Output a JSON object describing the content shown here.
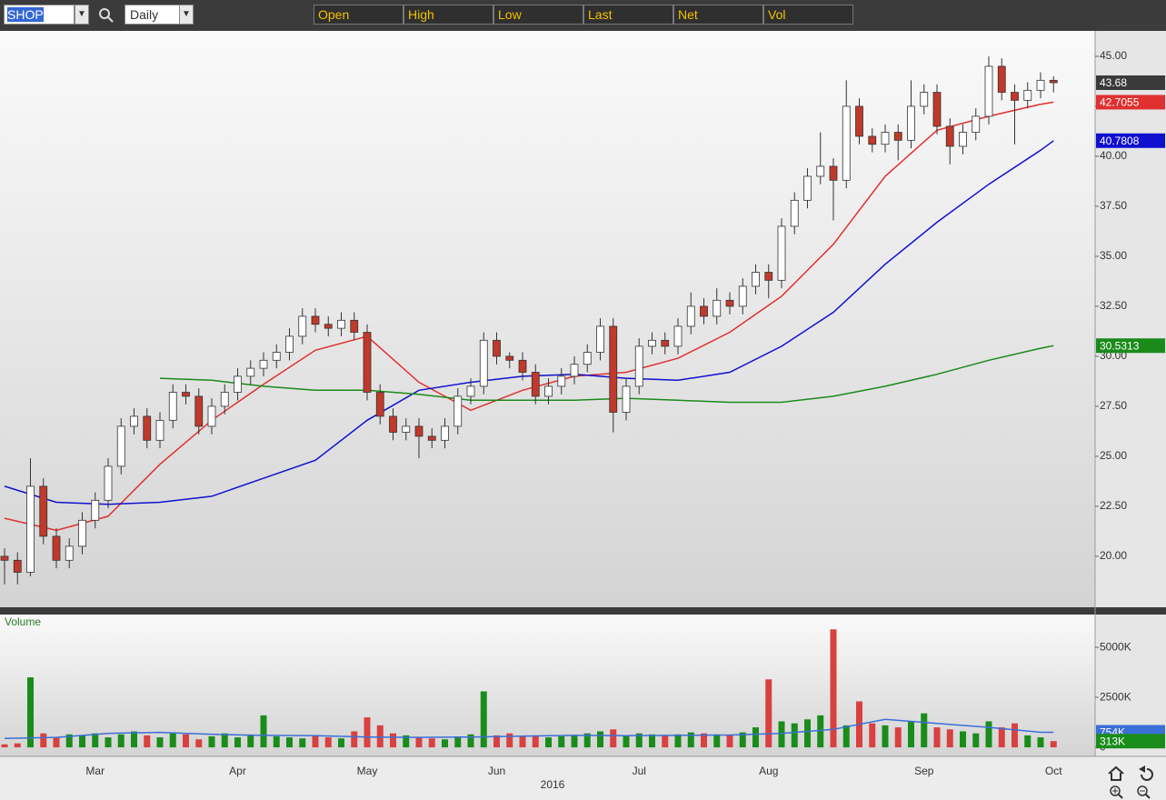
{
  "toolbar": {
    "symbol": "SHOP",
    "interval": "Daily",
    "fields": [
      "Open",
      "High",
      "Low",
      "Last",
      "Net",
      "Vol"
    ]
  },
  "chart_data": [
    {
      "type": "candlestick",
      "up_color": "#ffffff",
      "down_color": "#c0392b",
      "last_color": "#3a3a3a",
      "open": [
        20.0,
        19.8,
        19.2,
        23.5,
        21.0,
        19.8,
        20.5,
        21.8,
        22.8,
        24.5,
        26.5,
        27.0,
        25.8,
        26.8,
        28.2,
        28.0,
        26.5,
        27.5,
        28.2,
        29.0,
        29.4,
        29.8,
        30.2,
        31.0,
        32.0,
        31.6,
        31.4,
        31.8,
        31.2,
        28.2,
        27.0,
        26.2,
        26.5,
        26.0,
        25.8,
        26.5,
        28.0,
        28.5,
        30.8,
        30.0,
        29.8,
        29.2,
        28.0,
        28.5,
        29.0,
        29.6,
        30.2,
        31.5,
        27.2,
        28.5,
        30.5,
        30.8,
        30.5,
        31.5,
        32.5,
        32.0,
        32.8,
        32.5,
        33.5,
        34.2,
        33.8,
        36.5,
        37.8,
        39.0,
        39.5,
        38.8,
        42.5,
        41.0,
        40.6,
        41.2,
        40.8,
        42.5,
        43.2,
        41.5,
        40.5,
        41.2,
        42.0,
        44.5,
        43.2,
        42.8,
        43.3,
        43.8
      ],
      "high": [
        20.4,
        20.2,
        24.9,
        23.9,
        21.4,
        20.9,
        22.2,
        23.2,
        24.9,
        26.9,
        27.4,
        27.4,
        27.2,
        28.6,
        28.6,
        28.4,
        27.9,
        28.6,
        29.4,
        29.8,
        30.2,
        30.6,
        31.4,
        32.4,
        32.4,
        32.0,
        32.2,
        32.2,
        31.6,
        28.6,
        27.4,
        26.9,
        26.9,
        26.4,
        26.9,
        28.4,
        28.9,
        31.2,
        31.2,
        30.2,
        30.2,
        29.6,
        28.9,
        29.4,
        30.0,
        30.6,
        31.9,
        31.9,
        28.9,
        30.9,
        31.2,
        31.2,
        31.9,
        33.2,
        32.9,
        33.4,
        33.2,
        33.9,
        34.6,
        34.6,
        36.9,
        38.2,
        39.4,
        41.2,
        39.9,
        43.8,
        42.9,
        41.4,
        41.6,
        41.6,
        43.8,
        43.6,
        43.6,
        41.9,
        41.6,
        42.4,
        45.0,
        44.9,
        43.6,
        43.7,
        44.2,
        44.0
      ],
      "low": [
        18.6,
        18.6,
        19.0,
        20.6,
        19.4,
        19.4,
        20.1,
        21.4,
        22.4,
        24.1,
        26.1,
        25.4,
        25.4,
        26.4,
        27.6,
        26.1,
        26.1,
        27.1,
        27.8,
        28.6,
        29.0,
        29.4,
        29.8,
        30.6,
        31.2,
        31.0,
        31.0,
        30.8,
        27.8,
        26.6,
        25.8,
        25.8,
        24.9,
        25.4,
        25.4,
        26.1,
        27.6,
        28.1,
        29.6,
        29.4,
        28.8,
        27.6,
        27.6,
        28.1,
        28.6,
        29.2,
        29.8,
        26.2,
        26.8,
        28.1,
        30.1,
        30.1,
        30.1,
        31.1,
        31.6,
        31.6,
        32.1,
        32.1,
        33.1,
        32.9,
        33.4,
        36.1,
        37.4,
        38.6,
        36.8,
        38.4,
        40.6,
        40.2,
        40.2,
        39.8,
        40.4,
        42.1,
        41.1,
        39.6,
        40.1,
        40.8,
        41.6,
        42.8,
        40.6,
        42.4,
        42.9,
        43.2
      ],
      "close": [
        19.8,
        19.2,
        23.5,
        21.0,
        19.8,
        20.5,
        21.8,
        22.8,
        24.5,
        26.5,
        27.0,
        25.8,
        26.8,
        28.2,
        28.0,
        26.5,
        27.5,
        28.2,
        29.0,
        29.4,
        29.8,
        30.2,
        31.0,
        32.0,
        31.6,
        31.4,
        31.8,
        31.2,
        28.2,
        27.0,
        26.2,
        26.5,
        26.0,
        25.8,
        26.5,
        28.0,
        28.5,
        30.8,
        30.0,
        29.8,
        29.2,
        28.0,
        28.5,
        29.0,
        29.6,
        30.2,
        31.5,
        27.2,
        28.5,
        30.5,
        30.8,
        30.5,
        31.5,
        32.5,
        32.0,
        32.8,
        32.5,
        33.5,
        34.2,
        33.8,
        36.5,
        37.8,
        39.0,
        39.5,
        38.8,
        42.5,
        41.0,
        40.6,
        41.2,
        40.8,
        42.5,
        43.2,
        41.5,
        40.5,
        41.2,
        42.0,
        44.5,
        43.2,
        42.8,
        43.3,
        43.8,
        43.68
      ],
      "lines": [
        {
          "color": "#e03030",
          "x": [
            0,
            4,
            8,
            12,
            16,
            20,
            24,
            28,
            32,
            36,
            40,
            44,
            48,
            52,
            56,
            60,
            64,
            68,
            72,
            76,
            80,
            81
          ],
          "values": [
            21.9,
            21.3,
            22.0,
            24.6,
            26.8,
            28.6,
            30.3,
            31.0,
            28.7,
            27.3,
            28.3,
            29.0,
            29.2,
            29.9,
            31.2,
            33.0,
            35.6,
            39.0,
            41.3,
            42.0,
            42.6,
            42.7055
          ]
        },
        {
          "color": "#1010d0",
          "x": [
            0,
            4,
            8,
            12,
            16,
            20,
            24,
            28,
            32,
            36,
            40,
            44,
            48,
            52,
            56,
            60,
            64,
            68,
            72,
            76,
            80,
            81
          ],
          "values": [
            23.5,
            22.7,
            22.6,
            22.7,
            23.0,
            23.9,
            24.8,
            26.8,
            28.3,
            28.7,
            29.0,
            29.1,
            28.9,
            28.8,
            29.2,
            30.5,
            32.2,
            34.6,
            36.7,
            38.6,
            40.3,
            40.7808
          ]
        },
        {
          "color": "#1a8a1a",
          "x": [
            0,
            4,
            8,
            12,
            16,
            20,
            24,
            28,
            32,
            36,
            40,
            44,
            48,
            52,
            56,
            60,
            64,
            68,
            72,
            76,
            80,
            81
          ],
          "values": [
            null,
            null,
            null,
            28.9,
            28.8,
            28.5,
            28.3,
            28.3,
            28.1,
            27.8,
            27.8,
            27.8,
            27.9,
            27.8,
            27.7,
            27.7,
            28.0,
            28.5,
            29.1,
            29.8,
            30.4,
            30.5313
          ]
        }
      ],
      "ylim": [
        17.45,
        46.27
      ],
      "yticks": [
        {
          "value": 20,
          "label": "20.00"
        },
        {
          "value": 22.5,
          "label": "22.50"
        },
        {
          "value": 25,
          "label": "25.00"
        },
        {
          "value": 27.5,
          "label": "27.50"
        },
        {
          "value": 30,
          "label": "30.00"
        },
        {
          "value": 32.5,
          "label": "32.50"
        },
        {
          "value": 35,
          "label": "35.00"
        },
        {
          "value": 37.5,
          "label": "37.50"
        },
        {
          "value": 40,
          "label": "40.00"
        },
        {
          "value": 42.5,
          "label": "42.50"
        },
        {
          "value": 45,
          "label": "45.00"
        }
      ]
    },
    {
      "type": "bar",
      "title": "Volume",
      "x_label": "2016",
      "up_color": "#1a8c1a",
      "down_color": "#d94040",
      "categories": [
        null,
        null,
        null,
        null,
        null,
        null,
        null,
        "Mar",
        null,
        null,
        null,
        null,
        null,
        null,
        null,
        null,
        null,
        null,
        "Apr",
        null,
        null,
        null,
        null,
        null,
        null,
        null,
        null,
        null,
        "May",
        null,
        null,
        null,
        null,
        null,
        null,
        null,
        null,
        null,
        "Jun",
        null,
        null,
        null,
        null,
        null,
        null,
        null,
        null,
        null,
        null,
        "Jul",
        null,
        null,
        null,
        null,
        null,
        null,
        null,
        null,
        null,
        "Aug",
        null,
        null,
        null,
        null,
        null,
        null,
        null,
        null,
        null,
        null,
        null,
        "Sep",
        null,
        null,
        null,
        null,
        null,
        null,
        null,
        null,
        null,
        "Oct"
      ],
      "values": [
        150,
        200,
        3500,
        700,
        500,
        650,
        600,
        700,
        500,
        650,
        800,
        600,
        500,
        700,
        650,
        400,
        550,
        700,
        500,
        600,
        1600,
        550,
        500,
        450,
        600,
        500,
        450,
        800,
        1500,
        1100,
        700,
        600,
        500,
        450,
        400,
        550,
        650,
        2800,
        600,
        700,
        550,
        600,
        500,
        550,
        600,
        700,
        800,
        900,
        600,
        700,
        650,
        600,
        650,
        750,
        700,
        650,
        600,
        750,
        1000,
        3400,
        1300,
        1200,
        1400,
        1600,
        5900,
        1100,
        2300,
        1200,
        1100,
        1000,
        1300,
        1700,
        1000,
        900,
        800,
        700,
        1300,
        1000,
        1200,
        600,
        500,
        313
      ],
      "lines": [
        {
          "color": "#3a6fd8",
          "x": [
            0,
            4,
            8,
            12,
            16,
            20,
            24,
            28,
            32,
            36,
            40,
            44,
            48,
            52,
            56,
            60,
            64,
            68,
            72,
            76,
            80,
            81
          ],
          "values": [
            450,
            500,
            700,
            750,
            650,
            600,
            580,
            520,
            500,
            520,
            560,
            600,
            580,
            600,
            620,
            700,
            900,
            1400,
            1200,
            1000,
            754,
            754
          ]
        }
      ],
      "tags": [
        {
          "value": 754,
          "label": "754K",
          "color": "#3a6fd8"
        },
        {
          "value": 313,
          "label": "313K",
          "color": "#1a8c1a"
        }
      ],
      "ylim": [
        -450,
        6640
      ],
      "yticks": [
        0,
        {
          "value": 2500,
          "label": "2500K"
        },
        {
          "value": 5000,
          "label": "5000K"
        }
      ]
    }
  ]
}
